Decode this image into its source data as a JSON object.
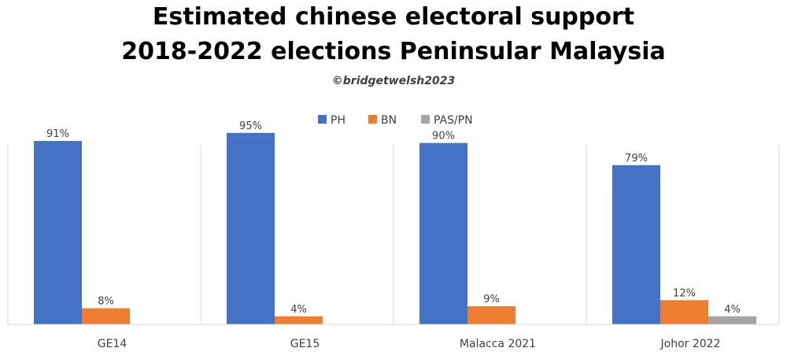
{
  "title_lines": [
    "Estimated chinese electoral support",
    "2018-2022 elections Peninsular Malaysia"
  ],
  "credit": "©bridgetwelsh2023",
  "chart_data": {
    "type": "bar",
    "title": "Estimated chinese electoral support 2018-2022 elections Peninsular Malaysia",
    "xlabel": "",
    "ylabel": "",
    "ylim": [
      0,
      100
    ],
    "grid": false,
    "legend_position": "top",
    "categories": [
      "GE14",
      "GE15",
      "Malacca 2021",
      "Johor 2022"
    ],
    "series": [
      {
        "name": "PH",
        "color": "#4472C4",
        "values": [
          91,
          95,
          90,
          79
        ],
        "labels": [
          "91%",
          "95%",
          "90%",
          "79%"
        ]
      },
      {
        "name": "BN",
        "color": "#ED7D31",
        "values": [
          8,
          4,
          9,
          12
        ],
        "labels": [
          "8%",
          "4%",
          "9%",
          "12%"
        ]
      },
      {
        "name": "PAS/PN",
        "color": "#A5A5A5",
        "values": [
          null,
          null,
          null,
          4
        ],
        "labels": [
          "",
          "",
          "",
          "4%"
        ]
      }
    ]
  }
}
